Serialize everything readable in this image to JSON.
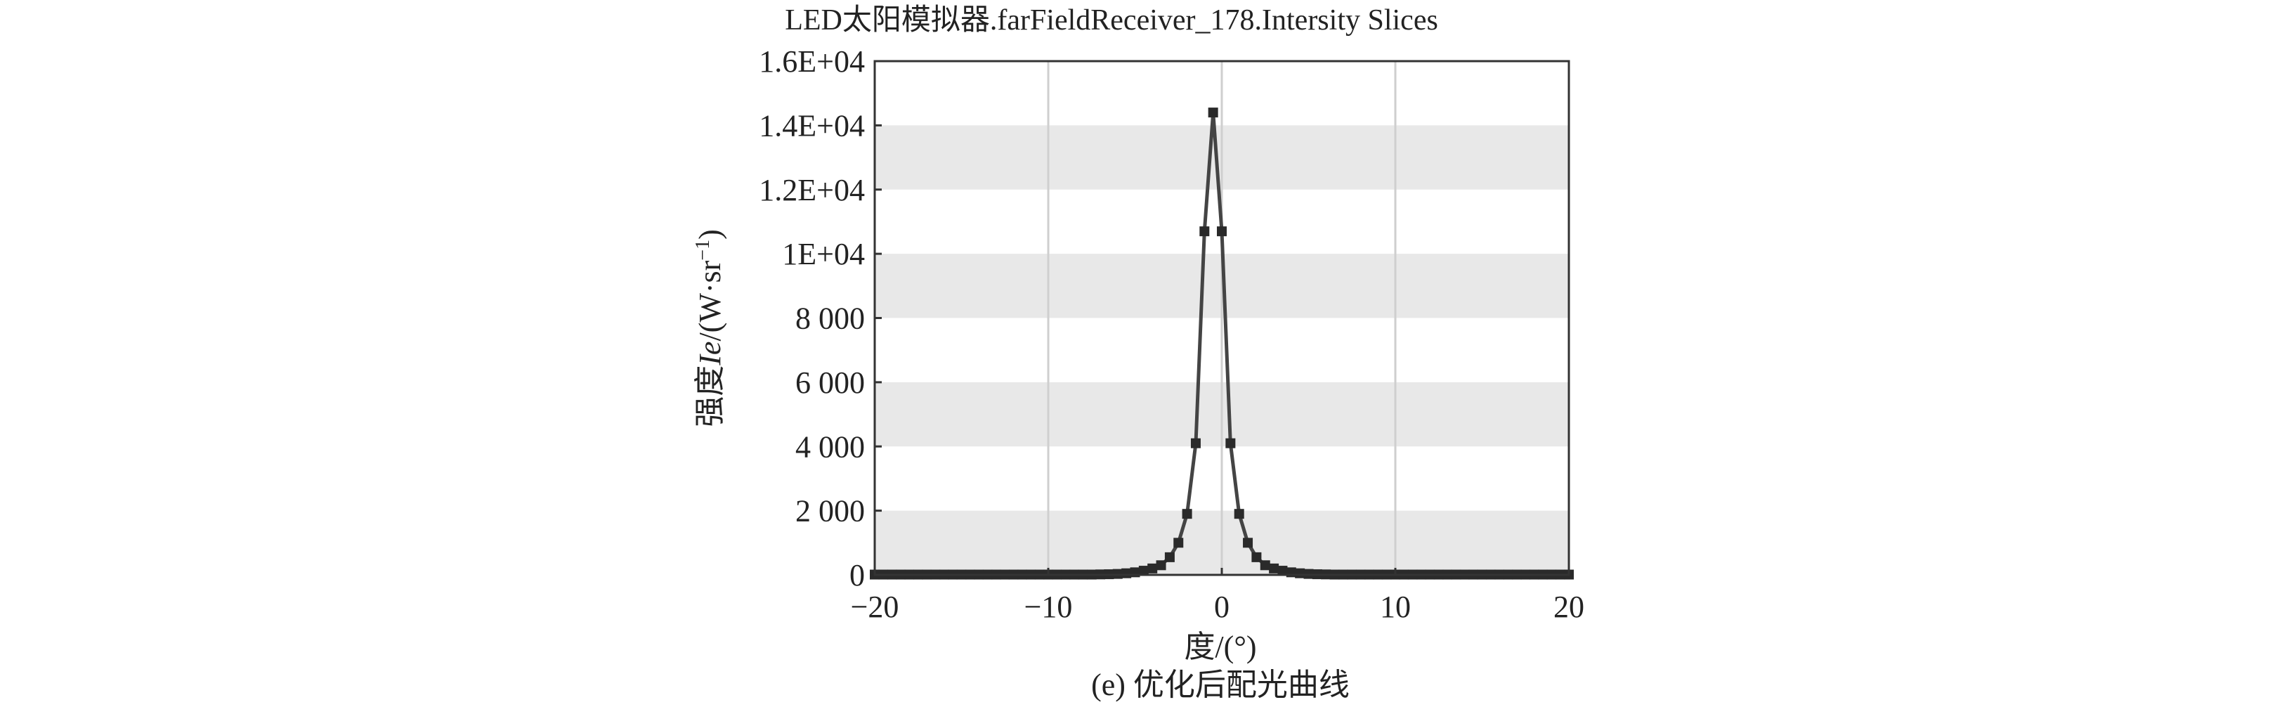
{
  "chart_data": {
    "type": "line",
    "title": "LED太阳模拟器.farFieldReceiver_178.Intersity Slices",
    "xlabel": "度/(°)",
    "ylabel_parts": {
      "pre": "强度",
      "italic": "Ie",
      "post": "/(W·sr",
      "sup": "−1",
      "close": ")"
    },
    "caption": "(e) 优化后配光曲线",
    "xlim": [
      -20,
      20
    ],
    "ylim": [
      0,
      16000
    ],
    "xticks": [
      -20,
      -10,
      0,
      10,
      20
    ],
    "xtick_labels": [
      "−20",
      "−10",
      "0",
      "10",
      "20"
    ],
    "yticks": [
      0,
      2000,
      4000,
      6000,
      8000,
      10000,
      12000,
      14000,
      16000
    ],
    "ytick_labels": [
      "0",
      "2 000",
      "4 000",
      "6 000",
      "8 000",
      "1E+04",
      "1.2E+04",
      "1.4E+04",
      "1.6E+04"
    ],
    "grid": true,
    "band_fill": "#e8e8e8",
    "line_color": "#444444",
    "series": [
      {
        "x": [
          -20,
          -19.5,
          -19,
          -18.5,
          -18,
          -17.5,
          -17,
          -16.5,
          -16,
          -15.5,
          -15,
          -14.5,
          -14,
          -13.5,
          -13,
          -12.5,
          -12,
          -11.5,
          -11,
          -10.5,
          -10,
          -9.5,
          -9,
          -8.5,
          -8,
          -7.5,
          -7,
          -6.5,
          -6,
          -5.5,
          -5,
          -4.5,
          -4,
          -3.5,
          -3,
          -2.5,
          -2,
          -1.5,
          -1,
          -0.5,
          0,
          0.5,
          1,
          1.5,
          2,
          2.5,
          3,
          3.5,
          4,
          4.5,
          5,
          5.5,
          6,
          6.5,
          7,
          7.5,
          8,
          8.5,
          9,
          9.5,
          10,
          10.5,
          11,
          11.5,
          12,
          12.5,
          13,
          13.5,
          14,
          14.5,
          15,
          15.5,
          16,
          16.5,
          17,
          17.5,
          18,
          18.5,
          19,
          19.5,
          20
        ],
        "values": [
          10,
          10,
          10,
          10,
          10,
          10,
          10,
          10,
          10,
          10,
          10,
          10,
          10,
          10,
          10,
          10,
          10,
          10,
          10,
          10,
          10,
          10,
          10,
          10,
          10,
          10,
          15,
          20,
          30,
          50,
          80,
          130,
          200,
          300,
          550,
          1000,
          1900,
          4100,
          10700,
          14400,
          10700,
          4100,
          1900,
          1000,
          550,
          300,
          200,
          130,
          80,
          50,
          30,
          20,
          15,
          10,
          10,
          10,
          10,
          10,
          10,
          10,
          10,
          10,
          10,
          10,
          10,
          10,
          10,
          10,
          10,
          10,
          10,
          10,
          10,
          10,
          10,
          10,
          10,
          10,
          10,
          10,
          10
        ]
      }
    ]
  }
}
